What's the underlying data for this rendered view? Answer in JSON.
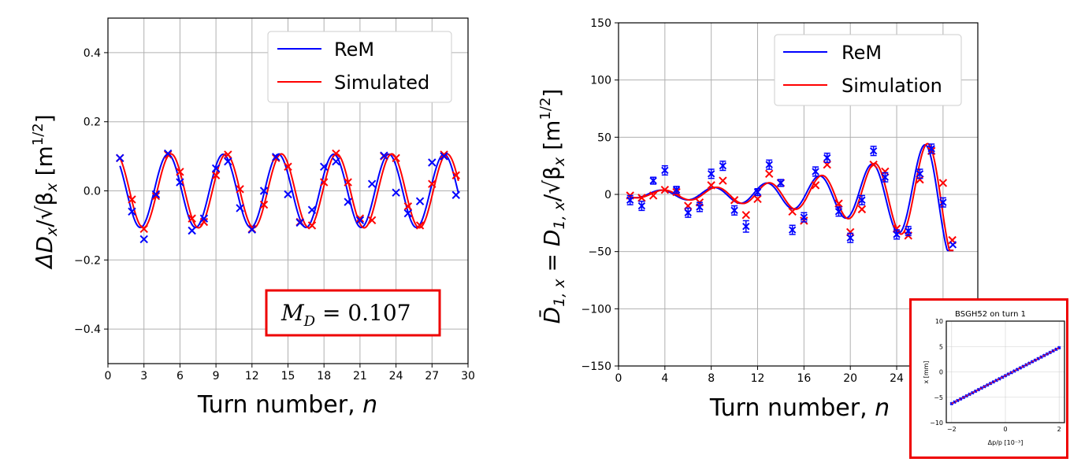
{
  "colors": {
    "rem": "#0000ff",
    "sim": "#ff0000",
    "highlight": "#ee0000",
    "grid": "#b0b0b0"
  },
  "left": {
    "ylabel_main": "ΔD",
    "ylabel_sub": "x",
    "ylabel_rest": "/√β",
    "ylabel_sub2": "x",
    "ylabel_unit": " [m",
    "ylabel_exp": "1/2",
    "ylabel_close": "]",
    "xlabel": "Turn number, ",
    "xlabel_var": "n",
    "legend": [
      "ReM",
      "Simulated"
    ],
    "metric_label": "M",
    "metric_sub": "D",
    "metric_value": " = 0.107"
  },
  "right": {
    "ylabel_main": "D̄",
    "ylabel_sub": "1, x",
    "ylabel_eq": " = D",
    "ylabel_sub2": "1, x",
    "ylabel_rest": "/√β",
    "ylabel_sub3": "x",
    "ylabel_unit": " [m",
    "ylabel_exp": "1/2",
    "ylabel_close": "]",
    "xlabel": "Turn number, ",
    "xlabel_var": "n",
    "legend": [
      "ReM",
      "Simulation"
    ]
  },
  "inset": {
    "title": "BSGH52 on turn 1",
    "ylabel": "x [mm]",
    "xlabel": "Δp/p [10⁻³]"
  },
  "chart_data": [
    {
      "type": "line",
      "xlim": [
        0,
        30
      ],
      "ylim": [
        -0.5,
        0.5
      ],
      "xticks": [
        0,
        3,
        6,
        9,
        12,
        15,
        18,
        21,
        24,
        27,
        30
      ],
      "yticks": [
        -0.4,
        -0.2,
        0.0,
        0.2,
        0.4
      ],
      "ytick_labels": [
        "−0.4",
        "−0.2",
        "0.0",
        "0.2",
        "0.4"
      ],
      "grid": true,
      "legend_position": "upper right",
      "series": [
        {
          "name": "ReM",
          "kind": "measured",
          "x": [
            1,
            2,
            3,
            4,
            5,
            6,
            7,
            8,
            9,
            10,
            11,
            12,
            13,
            14,
            15,
            16,
            17,
            18,
            19,
            20,
            21,
            22,
            23,
            24,
            25,
            26,
            27,
            28,
            29
          ],
          "y": [
            0.095,
            -0.06,
            -0.14,
            -0.01,
            0.108,
            0.025,
            -0.115,
            -0.08,
            0.065,
            0.085,
            -0.05,
            -0.112,
            0.0,
            0.098,
            -0.01,
            -0.092,
            -0.055,
            0.07,
            0.085,
            -0.032,
            -0.085,
            0.02,
            0.102,
            -0.005,
            -0.065,
            -0.03,
            0.082,
            0.1,
            -0.012
          ]
        },
        {
          "name": "Simulated",
          "kind": "measured",
          "x": [
            1,
            2,
            3,
            4,
            5,
            6,
            7,
            8,
            9,
            10,
            11,
            12,
            13,
            14,
            15,
            16,
            17,
            18,
            19,
            20,
            21,
            22,
            23,
            24,
            25,
            26,
            27,
            28,
            29
          ],
          "y": [
            0.095,
            -0.025,
            -0.11,
            -0.015,
            0.105,
            0.055,
            -0.08,
            -0.09,
            0.045,
            0.105,
            0.005,
            -0.11,
            -0.04,
            0.095,
            0.07,
            -0.09,
            -0.1,
            0.025,
            0.108,
            0.025,
            -0.08,
            -0.085,
            0.1,
            0.095,
            -0.045,
            -0.1,
            0.02,
            0.105,
            0.045
          ]
        }
      ],
      "fits": [
        {
          "name": "ReM",
          "amp": 0.106,
          "period": 4.6,
          "phase_at": 5.0,
          "x_start": 1.0,
          "x_end": 29.2
        },
        {
          "name": "Simulated",
          "amp": 0.107,
          "period": 4.6,
          "phase_at": 5.25,
          "x_start": 1.0,
          "x_end": 29.2
        }
      ]
    },
    {
      "type": "line",
      "xlim": [
        0,
        31
      ],
      "ylim": [
        -150,
        150
      ],
      "xticks": [
        0,
        4,
        8,
        12,
        16,
        20,
        24
      ],
      "yticks": [
        -150,
        -100,
        -50,
        0,
        50,
        100,
        150
      ],
      "ytick_labels": [
        "−150",
        "−100",
        "−50",
        "0",
        "50",
        "100",
        "150"
      ],
      "grid": true,
      "legend_position": "upper right",
      "series": [
        {
          "name": "ReM",
          "kind": "measured_with_errorbars",
          "x": [
            1,
            2,
            3,
            4,
            5,
            6,
            7,
            8,
            9,
            10,
            11,
            12,
            13,
            14,
            15,
            16,
            17,
            18,
            19,
            20,
            21,
            22,
            23,
            24,
            25,
            26,
            27,
            28
          ],
          "y": [
            -5,
            -10,
            12,
            21,
            4,
            -16,
            -11,
            18,
            25,
            -14,
            -28,
            2,
            26,
            10,
            -31,
            -20,
            20,
            32,
            -15,
            -38,
            -5,
            38,
            15,
            -35,
            -32,
            18,
            40,
            -7
          ],
          "yerr": [
            4,
            4,
            3,
            4,
            3,
            4,
            4,
            4,
            4,
            4,
            5,
            3,
            4,
            3,
            4,
            4,
            4,
            4,
            4,
            4,
            4,
            4,
            4,
            4,
            4,
            4,
            4,
            4
          ]
        },
        {
          "name": "Simulation",
          "kind": "measured",
          "x": [
            1,
            2,
            3,
            4,
            5,
            6,
            7,
            8,
            9,
            10,
            11,
            12,
            13,
            14,
            15,
            16,
            17,
            18,
            19,
            20,
            21,
            22,
            23,
            24,
            25,
            26,
            27,
            28
          ],
          "y": [
            -1,
            -3,
            -1,
            4,
            2,
            -10,
            -7,
            8,
            12,
            -5,
            -18,
            -4,
            18,
            10,
            -15,
            -23,
            8,
            26,
            -8,
            -33,
            -13,
            26,
            20,
            -30,
            -36,
            13,
            38,
            10
          ],
          "extra": {
            "x": 28.8,
            "y": -40
          }
        }
      ],
      "fits": [
        {
          "name": "ReM",
          "kind": "growing_sine"
        },
        {
          "name": "Simulation",
          "kind": "growing_sine"
        }
      ]
    },
    {
      "type": "scatter",
      "title": "BSGH52 on turn 1",
      "xlim": [
        -2.2,
        2.2
      ],
      "ylim": [
        -10,
        10
      ],
      "xticks": [
        -2,
        0,
        2
      ],
      "yticks": [
        -10,
        -5,
        0,
        5,
        10
      ],
      "series": [
        {
          "name": "points",
          "x_range": [
            -2.0,
            2.0
          ],
          "slope": 2.75,
          "intercept": -0.75
        }
      ]
    }
  ]
}
